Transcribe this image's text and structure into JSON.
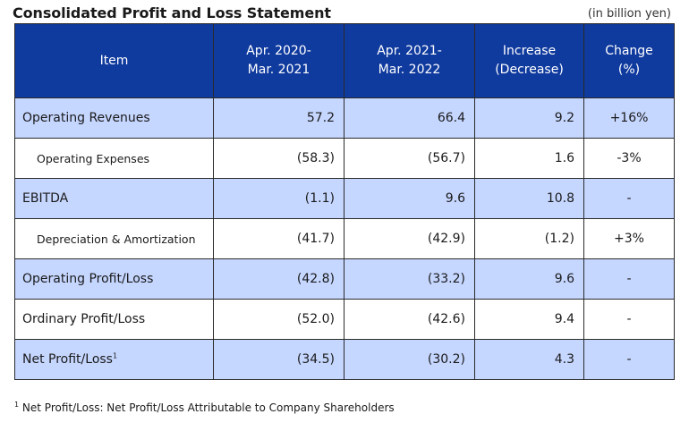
{
  "title": "Consolidated Profit and Loss Statement",
  "unit": "(in billion yen)",
  "headers": {
    "item": "Item",
    "fy2020_line1": "Apr. 2020-",
    "fy2020_line2": "Mar. 2021",
    "fy2021_line1": "Apr. 2021-",
    "fy2021_line2": "Mar. 2022",
    "increase_line1": "Increase",
    "increase_line2": "(Decrease)",
    "change_line1": "Change",
    "change_line2": "(%)"
  },
  "rows": [
    {
      "item": "Operating Revenues",
      "fy2020": "57.2",
      "fy2021": "66.4",
      "increase": "9.2",
      "change": "+16%"
    },
    {
      "item": "Operating Expenses",
      "fy2020": "(58.3)",
      "fy2021": "(56.7)",
      "increase": "1.6",
      "change": "-3%"
    },
    {
      "item": "EBITDA",
      "fy2020": "(1.1)",
      "fy2021": "9.6",
      "increase": "10.8",
      "change": "-"
    },
    {
      "item": "Depreciation & Amortization",
      "fy2020": "(41.7)",
      "fy2021": "(42.9)",
      "increase": "(1.2)",
      "change": "+3%"
    },
    {
      "item": "Operating Profit/Loss",
      "fy2020": "(42.8)",
      "fy2021": "(33.2)",
      "increase": "9.6",
      "change": "-"
    },
    {
      "item": "Ordinary Profit/Loss",
      "fy2020": "(52.0)",
      "fy2021": "(42.6)",
      "increase": "9.4",
      "change": "-"
    },
    {
      "item": "Net Profit/Loss",
      "item_sup": "1",
      "fy2020": "(34.5)",
      "fy2021": "(30.2)",
      "increase": "4.3",
      "change": "-"
    }
  ],
  "footnote": {
    "marker": "1",
    "text": " Net Profit/Loss: Net Profit/Loss Attributable to Company Shareholders"
  }
}
